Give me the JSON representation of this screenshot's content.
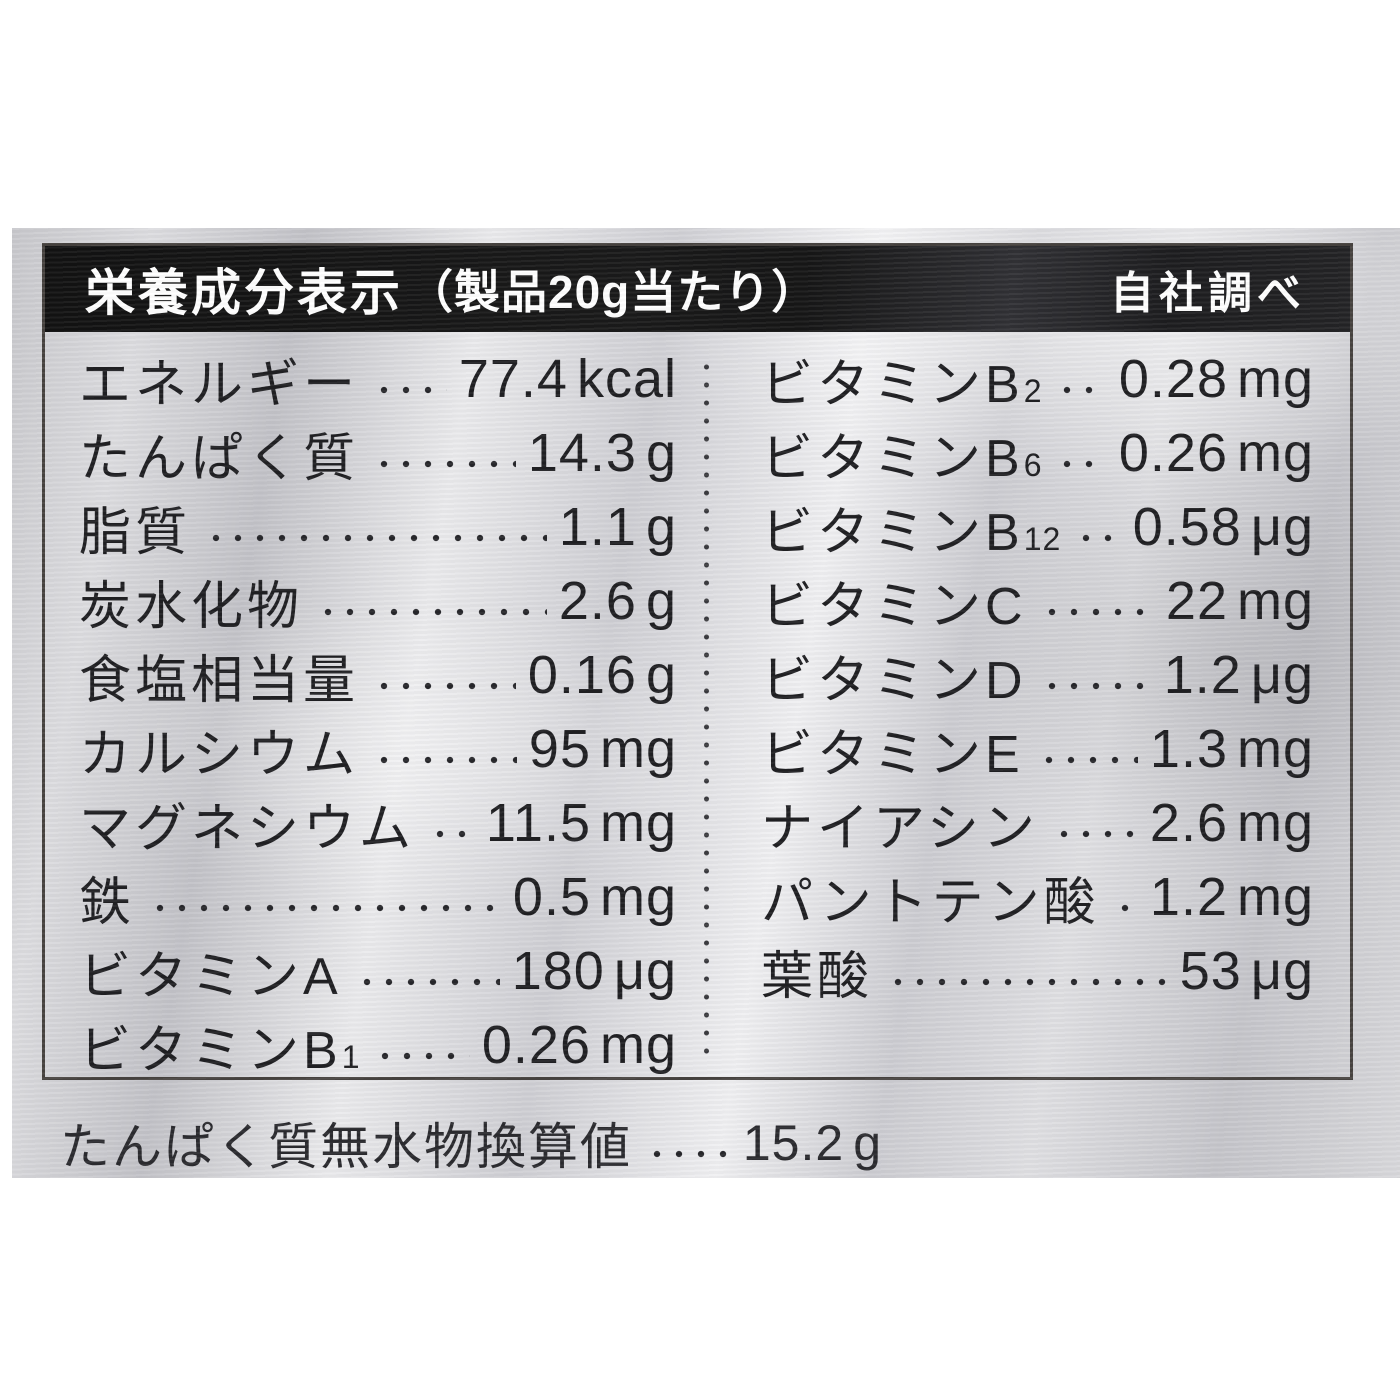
{
  "header": {
    "title": "栄養成分表示",
    "serving": "（製品20g当たり）",
    "note": "自社調べ"
  },
  "nutrients_left": [
    {
      "label": "エネルギー",
      "value": "77.4",
      "unit": "kcal"
    },
    {
      "label": "たんぱく質",
      "value": "14.3",
      "unit": "g"
    },
    {
      "label": "脂質",
      "value": "1.1",
      "unit": "g"
    },
    {
      "label": "炭水化物",
      "value": "2.6",
      "unit": "g"
    },
    {
      "label": "食塩相当量",
      "value": "0.16",
      "unit": "g"
    },
    {
      "label": "カルシウム",
      "value": "95",
      "unit": "mg"
    },
    {
      "label": "マグネシウム",
      "value": "11.5",
      "unit": "mg"
    },
    {
      "label": "鉄",
      "value": "0.5",
      "unit": "mg"
    },
    {
      "label": "ビタミンA",
      "value": "180",
      "unit": "μg"
    },
    {
      "label": "ビタミンB",
      "label_sub": "1",
      "value": "0.26",
      "unit": "mg"
    }
  ],
  "nutrients_right": [
    {
      "label": "ビタミンB",
      "label_sub": "2",
      "value": "0.28",
      "unit": "mg"
    },
    {
      "label": "ビタミンB",
      "label_sub": "6",
      "value": "0.26",
      "unit": "mg"
    },
    {
      "label": "ビタミンB",
      "label_sub": "12",
      "value": "0.58",
      "unit": "μg"
    },
    {
      "label": "ビタミンC",
      "value": "22",
      "unit": "mg"
    },
    {
      "label": "ビタミンD",
      "value": "1.2",
      "unit": "μg"
    },
    {
      "label": "ビタミンE",
      "value": "1.3",
      "unit": "mg"
    },
    {
      "label": "ナイアシン",
      "value": "2.6",
      "unit": "mg"
    },
    {
      "label": "パントテン酸",
      "value": "1.2",
      "unit": "mg"
    },
    {
      "label": "葉酸",
      "value": "53",
      "unit": "μg"
    }
  ],
  "footnote": {
    "label": "たんぱく質無水物換算値",
    "value": "15.2",
    "unit": "g"
  },
  "colors": {
    "header_bar": "#151515",
    "header_text": "#ffffff",
    "body_text": "#1f1f22",
    "package_silver": "#d4d4d8",
    "box_border": "#46423f"
  }
}
